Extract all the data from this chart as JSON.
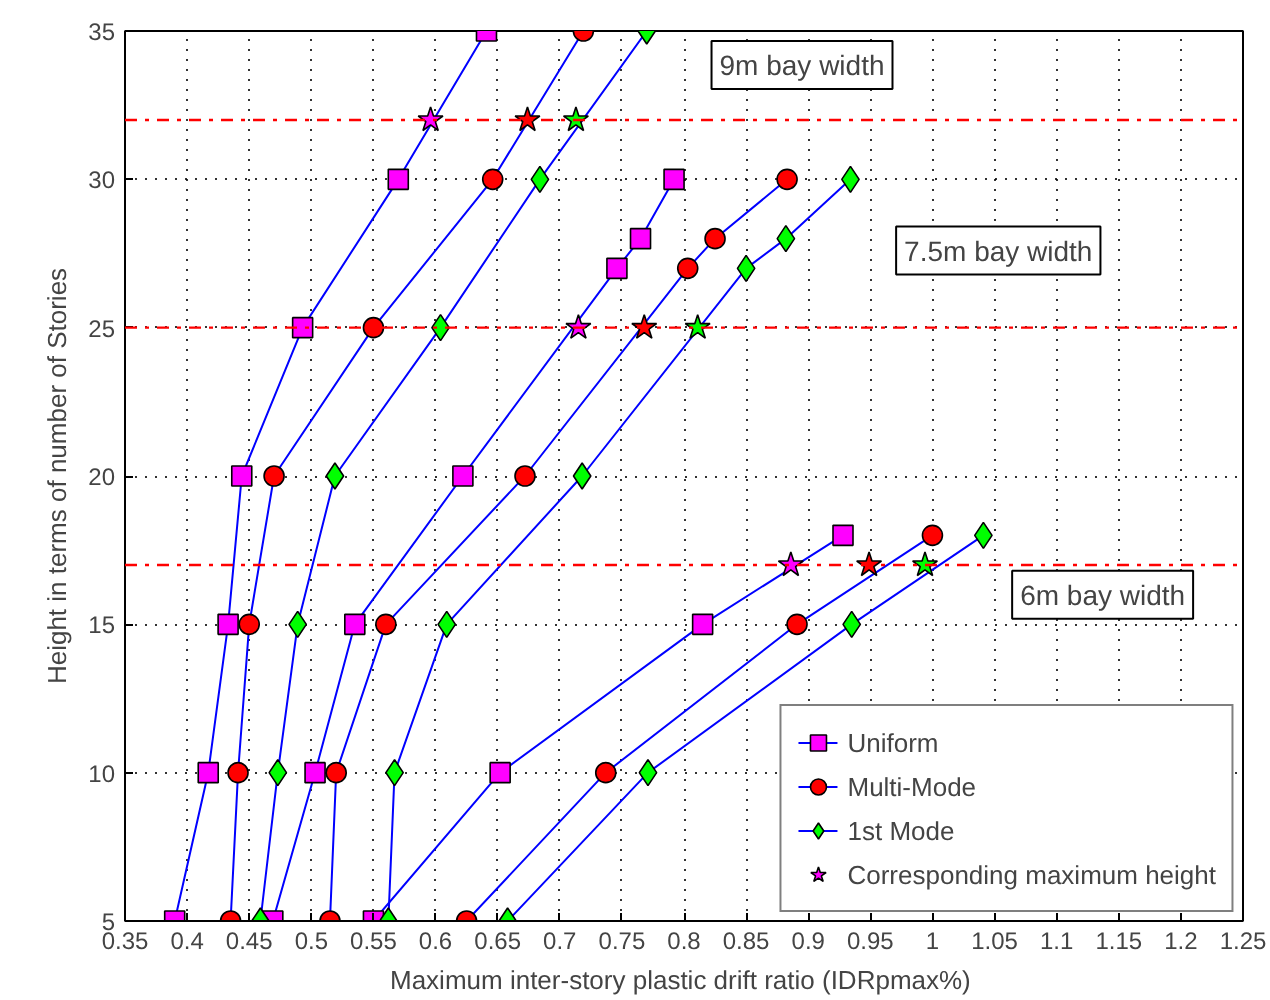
{
  "chart_data": {
    "type": "line",
    "xlabel": "Maximum inter-story  plastic drift ratio (IDRpmax%)",
    "ylabel": "Height in terms of number of Stories",
    "xlim": [
      0.35,
      1.25
    ],
    "ylim": [
      5,
      35
    ],
    "xticks": [
      0.35,
      0.4,
      0.45,
      0.5,
      0.55,
      0.6,
      0.65,
      0.7,
      0.75,
      0.8,
      0.85,
      0.9,
      0.95,
      1,
      1.05,
      1.1,
      1.15,
      1.2,
      1.25
    ],
    "yticks": [
      5,
      10,
      15,
      20,
      25,
      30,
      35
    ],
    "grid": true,
    "legend": "bottom right",
    "series": [
      {
        "name": "Uniform",
        "color": "#0000ff",
        "colors": [
          "#ff00ff",
          "#ff00ff",
          "#ff00ff",
          "#ff00ff",
          "#ff00ff",
          "#ff00ff",
          "#ff00ff",
          null,
          "#ff00ff",
          "#ff00ff",
          "#ff00ff",
          "#ff00ff",
          "#ff00ff",
          "#ff00ff",
          "#ff00ff",
          null,
          "#ff00ff",
          "#ff00ff",
          "#ff00ff",
          "#ff00ff"
        ],
        "marker": "square",
        "x": [
          0.39,
          0.417,
          0.433,
          0.444,
          0.493,
          0.57,
          0.641,
          null,
          0.469,
          0.503,
          0.535,
          0.622,
          0.746,
          0.765,
          0.792,
          null,
          0.55,
          0.652,
          0.815,
          0.928
        ],
        "values": [
          5,
          10,
          15,
          20,
          25,
          30,
          35,
          null,
          5,
          10,
          15,
          20,
          27,
          28,
          30,
          null,
          5,
          10,
          15,
          18
        ]
      },
      {
        "name": "Multi-Mode",
        "color": "#0000ff",
        "colors": [
          "#ff0000",
          "#ff0000",
          "#ff0000",
          "#ff0000",
          "#ff0000",
          "#ff0000",
          "#ff0000",
          null,
          "#ff0000",
          "#ff0000",
          "#ff0000",
          "#ff0000",
          "#ff0000",
          "#ff0000",
          "#ff0000",
          null,
          "#ff0000",
          "#ff0000",
          "#ff0000",
          "#ff0000"
        ],
        "marker": "circle",
        "x": [
          0.435,
          0.441,
          0.45,
          0.47,
          0.55,
          0.646,
          0.719,
          null,
          0.515,
          0.52,
          0.56,
          0.672,
          0.803,
          0.825,
          0.883,
          null,
          0.625,
          0.737,
          0.891,
          1.0
        ],
        "values": [
          5,
          10,
          15,
          20,
          25,
          30,
          35,
          null,
          5,
          10,
          15,
          20,
          27,
          28,
          30,
          null,
          5,
          10,
          15,
          18
        ]
      },
      {
        "name": "1st Mode",
        "color": "#0000ff",
        "colors": [
          "#00ff00",
          "#00ff00",
          "#00ff00",
          "#00ff00",
          "#00ff00",
          "#00ff00",
          "#00ff00",
          null,
          "#00ff00",
          "#00ff00",
          "#00ff00",
          "#00ff00",
          "#00ff00",
          "#00ff00",
          "#00ff00",
          null,
          "#00ff00",
          "#00ff00",
          "#00ff00",
          "#00ff00"
        ],
        "marker": "diamond",
        "x": [
          0.459,
          0.473,
          0.489,
          0.519,
          0.604,
          0.684,
          0.77,
          null,
          0.562,
          0.567,
          0.609,
          0.718,
          0.85,
          0.882,
          0.934,
          null,
          0.658,
          0.771,
          0.935,
          1.041
        ],
        "values": [
          5,
          10,
          15,
          20,
          25,
          30,
          35,
          null,
          5,
          10,
          15,
          20,
          27,
          28,
          30,
          null,
          5,
          10,
          15,
          18
        ]
      },
      {
        "name": "Corresponding maximum height",
        "type": "scatter",
        "marker": "star",
        "color": "#ff00ff",
        "colors": [
          "#ff00ff",
          "#ff0000",
          "#00ff00",
          "#ff00ff",
          "#ff0000",
          "#00ff00",
          "#ff00ff",
          "#ff0000",
          "#00ff00"
        ],
        "x": [
          0.596,
          0.674,
          0.713,
          0.715,
          0.768,
          0.811,
          0.886,
          0.949,
          0.994
        ],
        "values": [
          32,
          32,
          32,
          25,
          25,
          25,
          17,
          17,
          17
        ]
      }
    ],
    "ref_lines": [
      {
        "axis": "y",
        "value": 32,
        "color": "#ff0000",
        "line_style": "dashdot"
      },
      {
        "axis": "y",
        "value": 25,
        "color": "#ff0000",
        "line_style": "dashdot"
      },
      {
        "axis": "y",
        "value": 17,
        "color": "#ff0000",
        "line_style": "dashdot"
      }
    ],
    "annotations": [
      "9m bay width",
      "7.5m bay width",
      "6m bay width"
    ]
  }
}
